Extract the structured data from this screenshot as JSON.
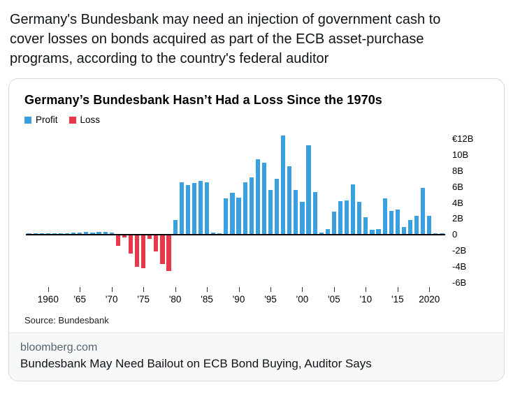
{
  "post": {
    "text": "Germany's Bundesbank may need an injection of government cash to cover losses on bonds acquired as part of the ECB asset-purchase programs, according to the country's federal auditor"
  },
  "card": {
    "domain": "bloomberg.com",
    "headline": "Bundesbank May Need Bailout on ECB Bond Buying, Auditor Says"
  },
  "chart_data": {
    "type": "bar",
    "title": "Germany’s Bundesbank Hasn’t Had a Loss Since the 1970s",
    "source": "Source: Bundesbank",
    "unit": "EUR billions",
    "legend": [
      {
        "label": "Profit",
        "color": "#3aa0e0"
      },
      {
        "label": "Loss",
        "color": "#e8394a"
      }
    ],
    "profit_color": "#3aa0e0",
    "loss_color": "#e8394a",
    "ylim": [
      -6,
      12
    ],
    "yticks": [
      {
        "value": 12,
        "label": "€12B"
      },
      {
        "value": 10,
        "label": "10B"
      },
      {
        "value": 8,
        "label": "8B"
      },
      {
        "value": 6,
        "label": "6B"
      },
      {
        "value": 4,
        "label": "4B"
      },
      {
        "value": 2,
        "label": "2B"
      },
      {
        "value": 0,
        "label": "0"
      },
      {
        "value": -2,
        "label": "-2B"
      },
      {
        "value": -4,
        "label": "-4B"
      },
      {
        "value": -6,
        "label": "-6B"
      }
    ],
    "xticks": [
      {
        "year": 1960,
        "label": "1960"
      },
      {
        "year": 1965,
        "label": "'65"
      },
      {
        "year": 1970,
        "label": "'70"
      },
      {
        "year": 1975,
        "label": "'75"
      },
      {
        "year": 1980,
        "label": "'80"
      },
      {
        "year": 1985,
        "label": "'85"
      },
      {
        "year": 1990,
        "label": "'90"
      },
      {
        "year": 1995,
        "label": "'95"
      },
      {
        "year": 2000,
        "label": "'00"
      },
      {
        "year": 2005,
        "label": "'05"
      },
      {
        "year": 2010,
        "label": "'10"
      },
      {
        "year": 2015,
        "label": "'15"
      },
      {
        "year": 2020,
        "label": "2020"
      }
    ],
    "years": [
      1957,
      1958,
      1959,
      1960,
      1961,
      1962,
      1963,
      1964,
      1965,
      1966,
      1967,
      1968,
      1969,
      1970,
      1971,
      1972,
      1973,
      1974,
      1975,
      1976,
      1977,
      1978,
      1979,
      1980,
      1981,
      1982,
      1983,
      1984,
      1985,
      1986,
      1987,
      1988,
      1989,
      1990,
      1991,
      1992,
      1993,
      1994,
      1995,
      1996,
      1997,
      1998,
      1999,
      2000,
      2001,
      2002,
      2003,
      2004,
      2005,
      2006,
      2007,
      2008,
      2009,
      2010,
      2011,
      2012,
      2013,
      2014,
      2015,
      2016,
      2017,
      2018,
      2019,
      2020,
      2021,
      2022
    ],
    "values": [
      0.1,
      0.15,
      0.1,
      0.15,
      0.1,
      0.15,
      0.2,
      0.25,
      0.3,
      0.35,
      0.3,
      0.4,
      0.35,
      0.3,
      -1.4,
      -0.3,
      -2.3,
      -4.0,
      -4.2,
      -0.5,
      -2.1,
      -3.6,
      -4.5,
      1.9,
      6.6,
      6.2,
      6.5,
      6.8,
      6.6,
      0.3,
      0.2,
      4.6,
      5.3,
      4.7,
      6.6,
      7.2,
      9.5,
      9.0,
      5.6,
      7.0,
      12.4,
      8.6,
      5.6,
      4.1,
      11.2,
      5.4,
      0.25,
      0.7,
      2.9,
      4.2,
      4.3,
      6.3,
      4.1,
      2.2,
      0.6,
      0.7,
      4.6,
      3.0,
      3.2,
      1.0,
      1.9,
      2.4,
      5.9,
      2.4,
      0.15,
      0.05
    ]
  }
}
